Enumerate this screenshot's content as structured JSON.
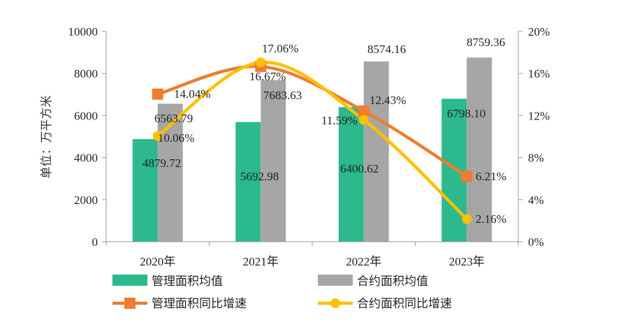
{
  "chart_data": {
    "type": "bar+line",
    "categories": [
      "2020年",
      "2021年",
      "2022年",
      "2023年"
    ],
    "ylabel_left": "单位：万平方米",
    "ylim_left": [
      0,
      10000
    ],
    "yticks_left": [
      "0",
      "2000",
      "4000",
      "6000",
      "8000",
      "10000"
    ],
    "ylim_right": [
      0,
      20
    ],
    "yticks_right": [
      "0%",
      "4%",
      "8%",
      "12%",
      "16%",
      "20%"
    ],
    "series": [
      {
        "name": "管理面积均值",
        "kind": "bar",
        "color": "#2BB98D",
        "values": [
          4879.72,
          5692.98,
          6400.62,
          6798.1
        ],
        "labels": [
          "4879.72",
          "5692.98",
          "6400.62",
          "6798.10"
        ]
      },
      {
        "name": "合约面积均值",
        "kind": "bar",
        "color": "#A6A6A6",
        "values": [
          6563.79,
          7683.63,
          8574.16,
          8759.36
        ],
        "labels": [
          "6563.79",
          "7683.63",
          "8574.16",
          "8759.36"
        ]
      },
      {
        "name": "管理面积同比增速",
        "kind": "line",
        "axis": "right",
        "color": "#ED7D31",
        "marker": "square",
        "values": [
          14.04,
          16.67,
          12.43,
          6.21
        ],
        "labels": [
          "14.04%",
          "16.67%",
          "12.43%",
          "6.21%"
        ]
      },
      {
        "name": "合约面积同比增速",
        "kind": "line",
        "axis": "right",
        "color": "#FFC000",
        "marker": "circle",
        "values": [
          10.06,
          17.06,
          11.59,
          2.16
        ],
        "labels": [
          "10.06%",
          "17.06%",
          "11.59%",
          "2.16%"
        ]
      }
    ]
  }
}
